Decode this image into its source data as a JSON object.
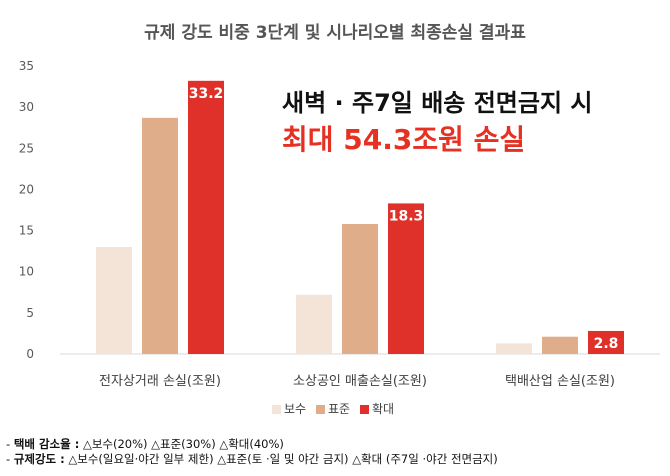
{
  "chart_data": {
    "type": "bar",
    "title": "규제 강도 비중 3단계 및 시나리오별 최종손실 결과표",
    "categories": [
      "전자상거래 손실(조원)",
      "소상공인 매출손실(조원)",
      "택배산업 손실(조원)"
    ],
    "series": [
      {
        "name": "보수",
        "color": "#f4e3d7",
        "values": [
          13.0,
          7.2,
          1.3
        ]
      },
      {
        "name": "표준",
        "color": "#e0ad8a",
        "values": [
          28.7,
          15.8,
          2.1
        ]
      },
      {
        "name": "확대",
        "color": "#e0302a",
        "values": [
          33.2,
          18.3,
          2.8
        ]
      }
    ],
    "data_labels": [
      "33.2",
      "18.3",
      "2.8"
    ],
    "yticks": [
      "0",
      "5",
      "10",
      "15",
      "20",
      "25",
      "30",
      "35"
    ],
    "ylim": [
      0,
      35
    ],
    "grid": false,
    "legend_position": "bottom"
  },
  "headline": {
    "line1": "새벽 · 주7일 배송 전면금지 시",
    "line2": "최대 54.3조원 손실"
  },
  "notes": [
    {
      "dash": "- ",
      "label": "택배 감소율 :",
      "text": " △보수(20%) △표준(30%) △확대(40%)"
    },
    {
      "dash": "- ",
      "label": "규제강도 :",
      "text": " △보수(일요일·야간 일부 제한) △표준(토 ·일 및 야간 금지) △확대 (주7일 ·야간 전면금지)"
    }
  ]
}
